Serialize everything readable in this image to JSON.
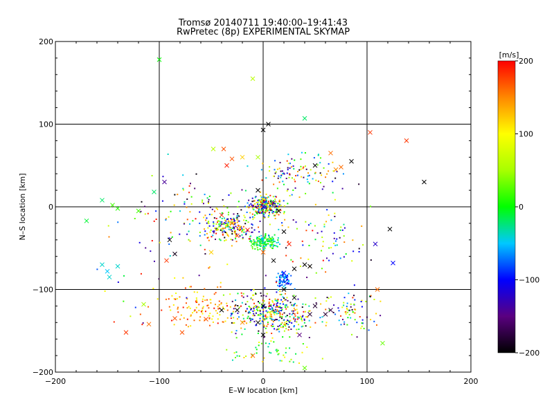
{
  "chart_data": {
    "type": "scatter",
    "title": "Tromsø 20140711 19:40:00–19:41:43",
    "subtitle": "RwPretec (8p) EXPERIMENTAL SKYMAP",
    "xlabel": "E–W location [km]",
    "ylabel": "N–S location [km]",
    "xlim": [
      -200,
      200
    ],
    "ylim": [
      -200,
      200
    ],
    "xticks": [
      "−200",
      "−100",
      "0",
      "100",
      "200"
    ],
    "yticks": [
      "−200",
      "−100",
      "0",
      "100",
      "200"
    ],
    "grid_lines": [
      -100,
      0,
      100
    ],
    "colorbar": {
      "unit": "[m/s]",
      "range": [
        -200,
        200
      ],
      "ticks": [
        "200",
        "100",
        "0",
        "−100",
        "−200"
      ],
      "colormap": "rainbow-to-black"
    },
    "series": [
      {
        "marker": "x",
        "points": [
          [
            -100,
            178,
            0
          ],
          [
            -155,
            8,
            -20
          ],
          [
            -145,
            2,
            20
          ],
          [
            -140,
            -2,
            10
          ],
          [
            -120,
            -5,
            20
          ],
          [
            -170,
            -17,
            -10
          ],
          [
            -140,
            -72,
            -40
          ],
          [
            -148,
            -85,
            -40
          ],
          [
            -150,
            -78,
            -50
          ],
          [
            -155,
            -70,
            -40
          ],
          [
            -115,
            -118,
            50
          ],
          [
            -110,
            -142,
            160
          ],
          [
            -132,
            -152,
            180
          ],
          [
            -105,
            18,
            -20
          ],
          [
            -95,
            30,
            -140
          ],
          [
            -90,
            -40,
            -200
          ],
          [
            -93,
            -65,
            180
          ],
          [
            -85,
            -57,
            -190
          ],
          [
            -85,
            -135,
            170
          ],
          [
            -78,
            -152,
            170
          ],
          [
            -55,
            -136,
            170
          ],
          [
            -48,
            70,
            60
          ],
          [
            -38,
            70,
            170
          ],
          [
            -30,
            58,
            170
          ],
          [
            -35,
            50,
            190
          ],
          [
            -40,
            -10,
            180
          ],
          [
            -30,
            -20,
            160
          ],
          [
            -25,
            -35,
            180
          ],
          [
            -15,
            -28,
            190
          ],
          [
            -20,
            60,
            120
          ],
          [
            -5,
            60,
            50
          ],
          [
            -5,
            20,
            -200
          ],
          [
            0,
            93,
            -200
          ],
          [
            5,
            100,
            -200
          ],
          [
            0,
            0,
            -130
          ],
          [
            10,
            5,
            -150
          ],
          [
            15,
            -5,
            -200
          ],
          [
            20,
            -30,
            -200
          ],
          [
            25,
            -45,
            190
          ],
          [
            -10,
            -45,
            10
          ],
          [
            0,
            -55,
            160
          ],
          [
            10,
            -65,
            -200
          ],
          [
            20,
            -80,
            -100
          ],
          [
            40,
            107,
            -20
          ],
          [
            40,
            -70,
            -200
          ],
          [
            45,
            -72,
            -200
          ],
          [
            30,
            -75,
            -200
          ],
          [
            20,
            -100,
            -200
          ],
          [
            30,
            -110,
            -200
          ],
          [
            50,
            -120,
            -180
          ],
          [
            45,
            -130,
            -180
          ],
          [
            60,
            -130,
            -180
          ],
          [
            65,
            -125,
            -170
          ],
          [
            0,
            -120,
            -200
          ],
          [
            -5,
            -140,
            -200
          ],
          [
            -40,
            -125,
            -200
          ],
          [
            -25,
            -125,
            -200
          ],
          [
            -20,
            -140,
            150
          ],
          [
            0,
            -155,
            -200
          ],
          [
            -10,
            -180,
            160
          ],
          [
            40,
            -195,
            30
          ],
          [
            50,
            50,
            -200
          ],
          [
            65,
            65,
            160
          ],
          [
            70,
            45,
            150
          ],
          [
            75,
            48,
            160
          ],
          [
            85,
            55,
            -200
          ],
          [
            103,
            90,
            180
          ],
          [
            138,
            80,
            180
          ],
          [
            155,
            30,
            -200
          ],
          [
            108,
            -45,
            -120
          ],
          [
            122,
            -27,
            -200
          ],
          [
            125,
            -68,
            -100
          ],
          [
            110,
            -100,
            160
          ],
          [
            115,
            -165,
            30
          ],
          [
            -10,
            155,
            60
          ],
          [
            -50,
            -55,
            120
          ],
          [
            35,
            -155,
            -150
          ]
        ]
      },
      {
        "marker": "dot",
        "clusters": [
          {
            "cx": 3,
            "cy": 0,
            "sx": 12,
            "sy": 9,
            "n": 240,
            "cmin": -200,
            "cmax": 200
          },
          {
            "cx": 0,
            "cy": -43,
            "sx": 10,
            "sy": 6,
            "n": 150,
            "cmin": -60,
            "cmax": 40
          },
          {
            "cx": 20,
            "cy": -88,
            "sx": 5,
            "sy": 6,
            "n": 70,
            "cmin": -120,
            "cmax": -40
          },
          {
            "cx": 10,
            "cy": -128,
            "sx": 28,
            "sy": 18,
            "n": 380,
            "cmin": -200,
            "cmax": 200
          },
          {
            "cx": -32,
            "cy": -25,
            "sx": 18,
            "sy": 12,
            "n": 200,
            "cmin": -200,
            "cmax": 200
          },
          {
            "cx": 35,
            "cy": 40,
            "sx": 30,
            "sy": 18,
            "n": 110,
            "cmin": -200,
            "cmax": 200
          },
          {
            "cx": -60,
            "cy": -120,
            "sx": 30,
            "sy": 20,
            "n": 120,
            "cmin": 80,
            "cmax": 200
          },
          {
            "cx": 85,
            "cy": -125,
            "sx": 18,
            "sy": 20,
            "n": 80,
            "cmin": -200,
            "cmax": 200
          },
          {
            "cx": -70,
            "cy": -10,
            "sx": 30,
            "sy": 40,
            "n": 90,
            "cmin": -200,
            "cmax": 200
          },
          {
            "cx": 50,
            "cy": -30,
            "sx": 35,
            "sy": 35,
            "n": 90,
            "cmin": -200,
            "cmax": 200
          },
          {
            "cx": -120,
            "cy": -80,
            "sx": 30,
            "sy": 50,
            "n": 25,
            "cmin": -200,
            "cmax": 200
          },
          {
            "cx": 10,
            "cy": -175,
            "sx": 30,
            "sy": 12,
            "n": 50,
            "cmin": -50,
            "cmax": 120
          }
        ]
      }
    ]
  }
}
